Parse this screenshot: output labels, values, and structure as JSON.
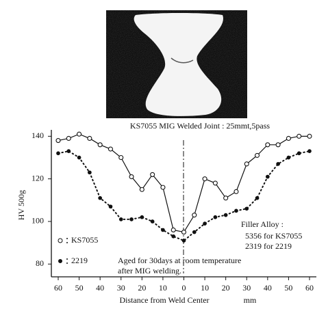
{
  "chart_data": {
    "type": "line",
    "title": "KS7055 MIG Welded Joint : 25mmt,5pass",
    "x_label": "Distance from Weld Center",
    "x_unit": "mm",
    "y_label": "HV  500g",
    "x": [
      -60,
      -55,
      -50,
      -45,
      -40,
      -35,
      -30,
      -25,
      -20,
      -15,
      -10,
      -5,
      0,
      5,
      10,
      15,
      20,
      25,
      30,
      35,
      40,
      45,
      50,
      55,
      60
    ],
    "series": [
      {
        "name": "KS7055",
        "color": "#111111",
        "line_style": "solid",
        "marker": "open",
        "values": [
          138,
          139,
          141,
          139,
          136,
          134,
          130,
          121,
          115,
          122,
          116,
          96,
          95,
          103,
          120,
          118,
          111,
          114,
          127,
          131,
          136,
          136,
          139,
          140,
          140
        ]
      },
      {
        "name": "2219",
        "color": "#111111",
        "line_style": "dotted",
        "marker": "filled",
        "values": [
          132,
          133,
          130,
          123,
          111,
          107,
          101,
          101,
          102,
          100,
          96,
          93,
          91,
          95,
          99,
          102,
          103,
          105,
          106,
          111,
          121,
          127,
          130,
          132,
          133
        ]
      }
    ],
    "xlim": [
      -60,
      60
    ],
    "xticks": [
      {
        "value": -60,
        "label": "60"
      },
      {
        "value": -50,
        "label": "50"
      },
      {
        "value": -40,
        "label": "40"
      },
      {
        "value": -30,
        "label": "30"
      },
      {
        "value": -20,
        "label": "20"
      },
      {
        "value": -10,
        "label": "10"
      },
      0,
      10,
      20,
      30,
      40,
      50,
      60
    ],
    "ylim": [
      74,
      143
    ],
    "yticks": [
      80,
      100,
      120,
      140
    ],
    "grid": false,
    "annotations": [
      "Filler Alloy :",
      "5356 for KS7055",
      "2319 for 2219",
      "Aged for 30days at room temperature",
      "after MIG welding."
    ]
  }
}
